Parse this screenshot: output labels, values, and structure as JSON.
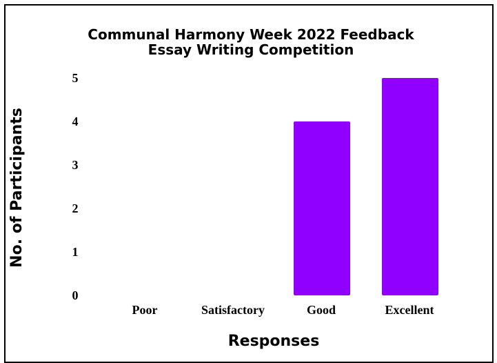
{
  "chart_data": {
    "type": "bar",
    "title_lines": [
      "Communal Harmony Week 2022 Feedback",
      "Essay Writing Competition"
    ],
    "xlabel": "Responses",
    "ylabel": "No. of Participants",
    "categories": [
      "Poor",
      "Satisfactory",
      "Good",
      "Excellent"
    ],
    "values": [
      0,
      0,
      4,
      5
    ],
    "yticks": [
      "0",
      "1",
      "2",
      "3",
      "4",
      "5"
    ],
    "ylim": [
      0,
      5
    ],
    "bar_color": "#9000ff",
    "grid": false,
    "legend": "none"
  }
}
